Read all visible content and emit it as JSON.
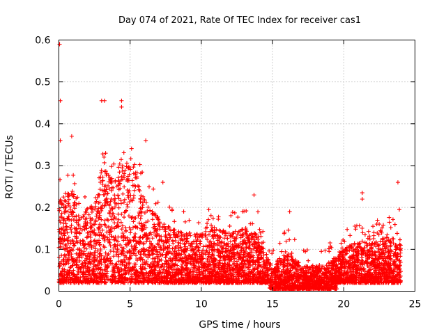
{
  "chart_data": {
    "type": "scatter",
    "title": "Day 074 of 2021, Rate Of TEC Index for receiver cas1",
    "xlabel": "GPS time / hours",
    "ylabel": "ROTI / TECUs",
    "xlim": [
      0,
      25
    ],
    "ylim": [
      0,
      0.6
    ],
    "xticks": [
      0,
      5,
      10,
      15,
      20,
      25
    ],
    "yticks": [
      0,
      0.1,
      0.2,
      0.3,
      0.4,
      0.5,
      0.6
    ],
    "grid": true,
    "marker": "+",
    "color": "#ff0000",
    "series": [
      {
        "name": "ROTI",
        "envelope_hours": [
          0,
          0.5,
          1,
          1.5,
          2,
          2.5,
          3,
          3.5,
          4,
          4.5,
          5,
          5.5,
          6,
          6.5,
          7,
          7.5,
          8,
          9,
          10,
          11,
          12,
          13,
          14,
          15,
          16,
          17,
          18,
          19,
          20,
          21,
          22,
          23,
          24
        ],
        "envelope_typical_max": [
          0.22,
          0.24,
          0.25,
          0.18,
          0.2,
          0.22,
          0.3,
          0.28,
          0.27,
          0.3,
          0.32,
          0.28,
          0.22,
          0.2,
          0.18,
          0.16,
          0.15,
          0.14,
          0.14,
          0.15,
          0.14,
          0.15,
          0.14,
          0.06,
          0.1,
          0.06,
          0.06,
          0.07,
          0.1,
          0.12,
          0.12,
          0.13,
          0.12
        ],
        "peaks": [
          {
            "x": 0.05,
            "y": 0.59
          },
          {
            "x": 0.1,
            "y": 0.455
          },
          {
            "x": 0.1,
            "y": 0.36
          },
          {
            "x": 0.9,
            "y": 0.37
          },
          {
            "x": 3.0,
            "y": 0.455
          },
          {
            "x": 3.2,
            "y": 0.455
          },
          {
            "x": 4.4,
            "y": 0.455
          },
          {
            "x": 4.4,
            "y": 0.44
          },
          {
            "x": 6.1,
            "y": 0.36
          },
          {
            "x": 7.3,
            "y": 0.26
          },
          {
            "x": 13.7,
            "y": 0.23
          },
          {
            "x": 16.2,
            "y": 0.19
          },
          {
            "x": 21.3,
            "y": 0.235
          },
          {
            "x": 21.3,
            "y": 0.22
          },
          {
            "x": 23.8,
            "y": 0.26
          },
          {
            "x": 23.9,
            "y": 0.195
          }
        ]
      }
    ]
  }
}
